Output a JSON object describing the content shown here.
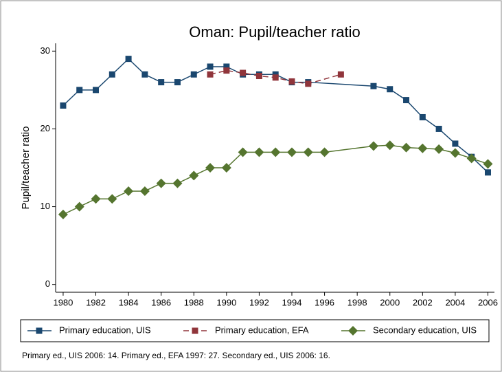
{
  "chart_data": {
    "type": "line",
    "title": "Oman: Pupil/teacher ratio",
    "y_label": "Pupil/teacher ratio",
    "note": "Primary ed., UIS 2006: 14. Primary ed., EFA 1997: 27. Secondary ed., UIS 2006: 16.",
    "xlim": [
      1979.54,
      2006.4
    ],
    "xticks": [
      1980,
      1982,
      1984,
      1986,
      1988,
      1990,
      1992,
      1994,
      1996,
      1998,
      2000,
      2002,
      2004,
      2006
    ],
    "ylim": [
      -1,
      31
    ],
    "yticks": [
      0,
      10,
      20,
      30
    ],
    "legend": "bottom",
    "series": [
      {
        "name": "Primary education, UIS",
        "color": "#1a476f",
        "marker": "square",
        "dash": false,
        "x": [
          1980,
          1981,
          1982,
          1983,
          1984,
          1985,
          1986,
          1987,
          1988,
          1989,
          1990,
          1991,
          1992,
          1993,
          1994,
          1995,
          1999,
          2000,
          2001,
          2002,
          2003,
          2004,
          2005,
          2006
        ],
        "values": [
          23,
          25,
          25,
          27,
          29,
          27,
          26,
          26,
          27,
          28,
          28,
          27,
          27,
          27,
          26,
          26,
          25.5,
          25.1,
          23.7,
          21.5,
          20,
          18.1,
          16.4,
          14.4
        ]
      },
      {
        "name": "Primary education, EFA",
        "color": "#90353b",
        "marker": "square",
        "dash": true,
        "x": [
          1989,
          1990,
          1991,
          1992,
          1993,
          1994,
          1995,
          1997
        ],
        "values": [
          27,
          27.5,
          27.2,
          26.8,
          26.6,
          26.1,
          25.8,
          27
        ]
      },
      {
        "name": "Secondary education, UIS",
        "color": "#55752f",
        "marker": "diamond",
        "dash": false,
        "x": [
          1980,
          1981,
          1982,
          1983,
          1984,
          1985,
          1986,
          1987,
          1988,
          1989,
          1990,
          1991,
          1992,
          1993,
          1994,
          1995,
          1996,
          1999,
          2000,
          2001,
          2002,
          2003,
          2004,
          2005,
          2006
        ],
        "values": [
          9,
          10,
          11,
          11,
          12,
          12,
          13,
          13,
          14,
          15,
          15,
          17,
          17,
          17,
          17,
          17,
          17,
          17.8,
          17.9,
          17.6,
          17.5,
          17.4,
          16.9,
          16.2,
          15.5
        ]
      }
    ]
  }
}
